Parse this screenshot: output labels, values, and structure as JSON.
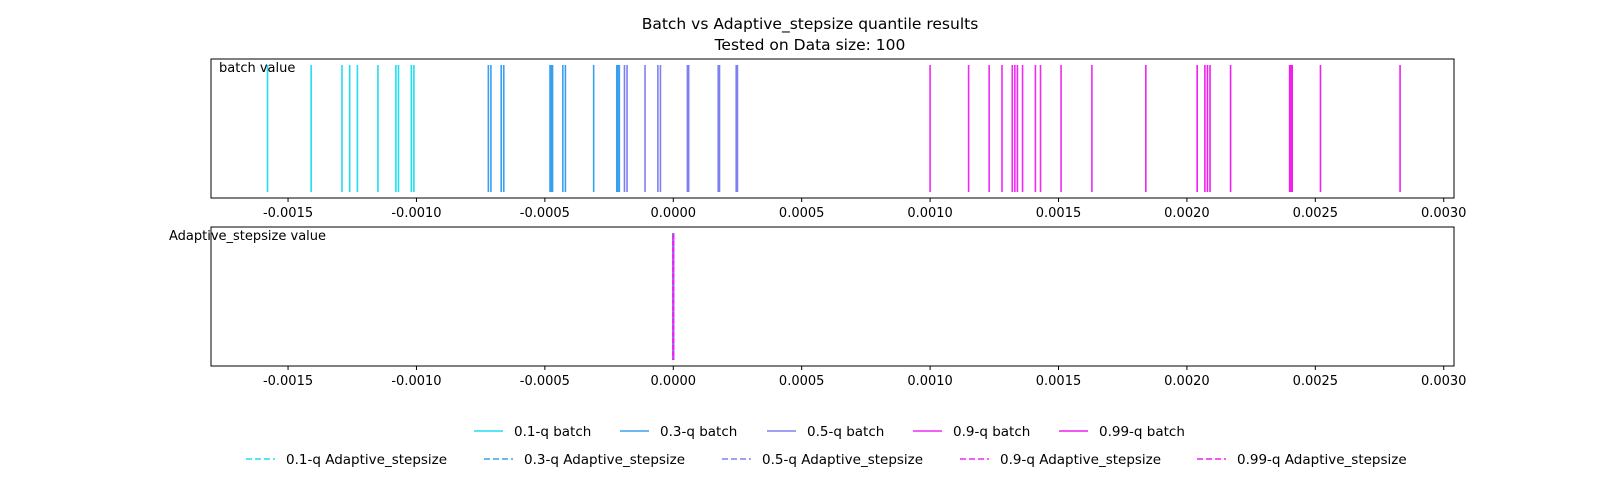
{
  "chart_data": {
    "type": "event-lines",
    "title": "Batch vs Adaptive_stepsize quantile results",
    "subtitle": "Tested on Data size: 100",
    "colors": {
      "0.1": "#22ddee",
      "0.3": "#3aa0ee",
      "0.5": "#7f80f0",
      "0.9": "#f02af4",
      "0.99": "#f01ff0"
    },
    "panels": [
      {
        "label": "batch value",
        "line_style": "solid",
        "xlim": [
          -0.0018,
          0.00304
        ],
        "xticks": [
          "-0.0015",
          "-0.0010",
          "-0.0005",
          "0.0000",
          "0.0005",
          "0.0010",
          "0.0015",
          "0.0020",
          "0.0025",
          "0.0030"
        ],
        "xtick_values": [
          -0.0015,
          -0.001,
          -0.0005,
          0.0,
          0.0005,
          0.001,
          0.0015,
          0.002,
          0.0025,
          0.003
        ],
        "series": [
          {
            "quantile": "0.1",
            "values": [
              -0.00158,
              -0.00141,
              -0.00129,
              -0.00126,
              -0.00123,
              -0.00115,
              -0.00108,
              -0.00107,
              -0.00102,
              -0.00101
            ]
          },
          {
            "quantile": "0.3",
            "values": [
              -0.00072,
              -0.00071,
              -0.00067,
              -0.00066,
              -0.00048,
              -0.000475,
              -0.00047,
              -0.00043,
              -0.00042,
              -0.00031,
              -0.00022,
              -0.000215,
              -0.00021
            ]
          },
          {
            "quantile": "0.5",
            "values": [
              -0.00019,
              -0.00018,
              -0.00011,
              -6e-05,
              -5e-05,
              5.5e-05,
              6e-05,
              0.000175,
              0.00018,
              0.000245,
              0.00025
            ]
          },
          {
            "quantile": "0.9",
            "values": [
              0.001,
              0.00115,
              0.00123,
              0.00128,
              0.00132,
              0.00133,
              0.00134,
              0.00136,
              0.00141,
              0.00143,
              0.00151,
              0.00163
            ]
          },
          {
            "quantile": "0.99",
            "values": [
              0.00184,
              0.00204,
              0.00207,
              0.00208,
              0.00209,
              0.00217,
              0.0024,
              0.002405,
              0.00241,
              0.00252,
              0.00283
            ]
          }
        ]
      },
      {
        "label": "Adaptive_stepsize value",
        "line_style": "dashed",
        "xlim": [
          -0.0018,
          0.00304
        ],
        "xticks": [
          "-0.0015",
          "-0.0010",
          "-0.0005",
          "0.0000",
          "0.0005",
          "0.0010",
          "0.0015",
          "0.0020",
          "0.0025",
          "0.0030"
        ],
        "xtick_values": [
          -0.0015,
          -0.001,
          -0.0005,
          0.0,
          0.0005,
          0.001,
          0.0015,
          0.002,
          0.0025,
          0.003
        ],
        "series": [
          {
            "quantile": "0.1",
            "values": [
              0.0
            ]
          },
          {
            "quantile": "0.3",
            "values": [
              0.0
            ]
          },
          {
            "quantile": "0.5",
            "values": [
              0.0
            ]
          },
          {
            "quantile": "0.9",
            "values": [
              0.0
            ]
          },
          {
            "quantile": "0.99",
            "values": [
              0.0
            ]
          }
        ]
      }
    ],
    "legend": {
      "placement": "bottom-center",
      "rows": [
        [
          {
            "label": "0.1-q batch",
            "quantile": "0.1",
            "style": "solid"
          },
          {
            "label": "0.3-q batch",
            "quantile": "0.3",
            "style": "solid"
          },
          {
            "label": "0.5-q batch",
            "quantile": "0.5",
            "style": "solid"
          },
          {
            "label": "0.9-q batch",
            "quantile": "0.9",
            "style": "solid"
          },
          {
            "label": "0.99-q batch",
            "quantile": "0.99",
            "style": "solid"
          }
        ],
        [
          {
            "label": "0.1-q Adaptive_stepsize",
            "quantile": "0.1",
            "style": "dashed"
          },
          {
            "label": "0.3-q Adaptive_stepsize",
            "quantile": "0.3",
            "style": "dashed"
          },
          {
            "label": "0.5-q Adaptive_stepsize",
            "quantile": "0.5",
            "style": "dashed"
          },
          {
            "label": "0.9-q Adaptive_stepsize",
            "quantile": "0.9",
            "style": "dashed"
          },
          {
            "label": "0.99-q Adaptive_stepsize",
            "quantile": "0.99",
            "style": "dashed"
          }
        ]
      ]
    }
  }
}
